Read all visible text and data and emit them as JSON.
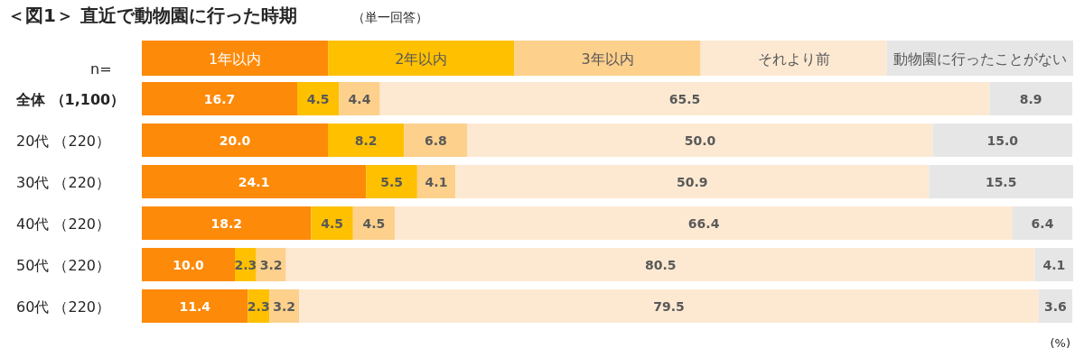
{
  "chart_data": {
    "type": "bar",
    "orientation": "horizontal",
    "stacked": true,
    "legend": "top",
    "title": "＜図1＞ 直近で動物園に行った時期",
    "subtitle": "（単一回答）",
    "annotations": [
      "n=",
      "(%)"
    ],
    "categories": [
      "全体 （1,100）",
      "20代 （220）",
      "30代 （220）",
      "40代 （220）",
      "50代 （220）",
      "60代 （220）"
    ],
    "series": [
      {
        "name": "1年以内",
        "color": "#fd8a09",
        "values": [
          16.7,
          20.0,
          24.1,
          18.2,
          10.0,
          11.4
        ],
        "value_labels": [
          "16.7",
          "20.0",
          "24.1",
          "18.2",
          "10.0",
          "11.4"
        ]
      },
      {
        "name": "2年以内",
        "color": "#ffc000",
        "values": [
          4.5,
          8.2,
          5.5,
          4.5,
          2.3,
          2.3
        ],
        "value_labels": [
          "4.5",
          "8.2",
          "5.5",
          "4.5",
          "2.3",
          "2.3"
        ]
      },
      {
        "name": "3年以内",
        "color": "#fdd08c",
        "values": [
          4.4,
          6.8,
          4.1,
          4.5,
          3.2,
          3.2
        ],
        "value_labels": [
          "4.4",
          "6.8",
          "4.1",
          "4.5",
          "3.2",
          "3.2"
        ]
      },
      {
        "name": "それより前",
        "color": "#fde9d2",
        "values": [
          65.5,
          50.0,
          50.9,
          66.4,
          80.5,
          79.5
        ],
        "value_labels": [
          "65.5",
          "50.0",
          "50.9",
          "66.4",
          "80.5",
          "79.5"
        ]
      },
      {
        "name": "動物園に行ったことがない",
        "color": "#e6e6e6",
        "values": [
          8.9,
          15.0,
          15.5,
          6.4,
          4.1,
          3.6
        ],
        "value_labels": [
          "8.9",
          "15.0",
          "15.5",
          "6.4",
          "4.1",
          "3.6"
        ]
      }
    ]
  }
}
